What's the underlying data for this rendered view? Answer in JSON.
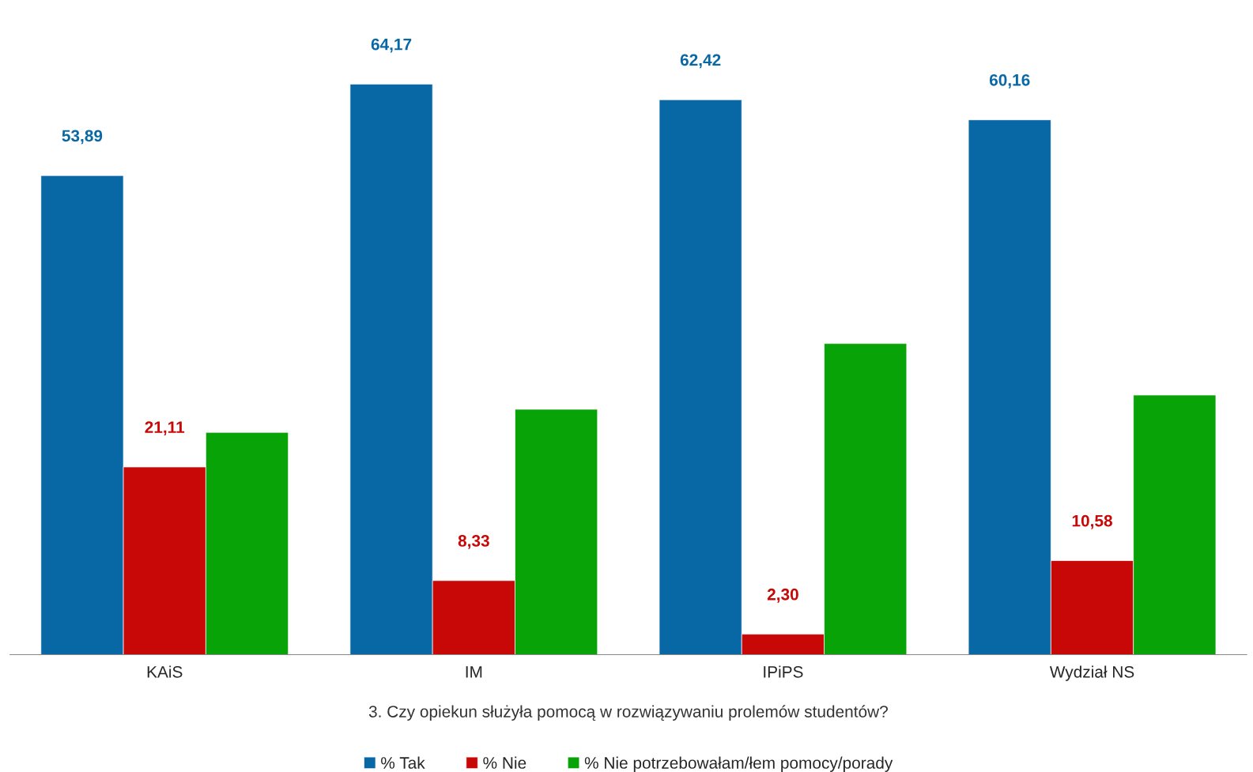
{
  "chart_data": {
    "type": "bar",
    "xlabel": "3. Czy opiekun służyła pomocą w rozwiązywaniu prolemów studentów?",
    "categories": [
      "KAiS",
      "IM",
      "IPiPS",
      "Wydział NS"
    ],
    "series": [
      {
        "name": "% Tak",
        "color": "#0868a5",
        "values": [
          53.89,
          64.17,
          62.42,
          60.16
        ],
        "value_labels": [
          "53,89",
          "64,17",
          "62,42",
          "60,16"
        ]
      },
      {
        "name": "% Nie",
        "color": "#c80707",
        "values": [
          21.11,
          8.33,
          2.3,
          10.58
        ],
        "value_labels": [
          "21,11",
          "8,33",
          "2,30",
          "10,58"
        ]
      },
      {
        "name": "% Nie potrzebowałam/łem pomocy/porady",
        "color": "#07a307",
        "values": [
          25.0,
          27.6,
          35.0,
          29.2
        ]
      }
    ],
    "grid": false,
    "legend": "bottom"
  }
}
